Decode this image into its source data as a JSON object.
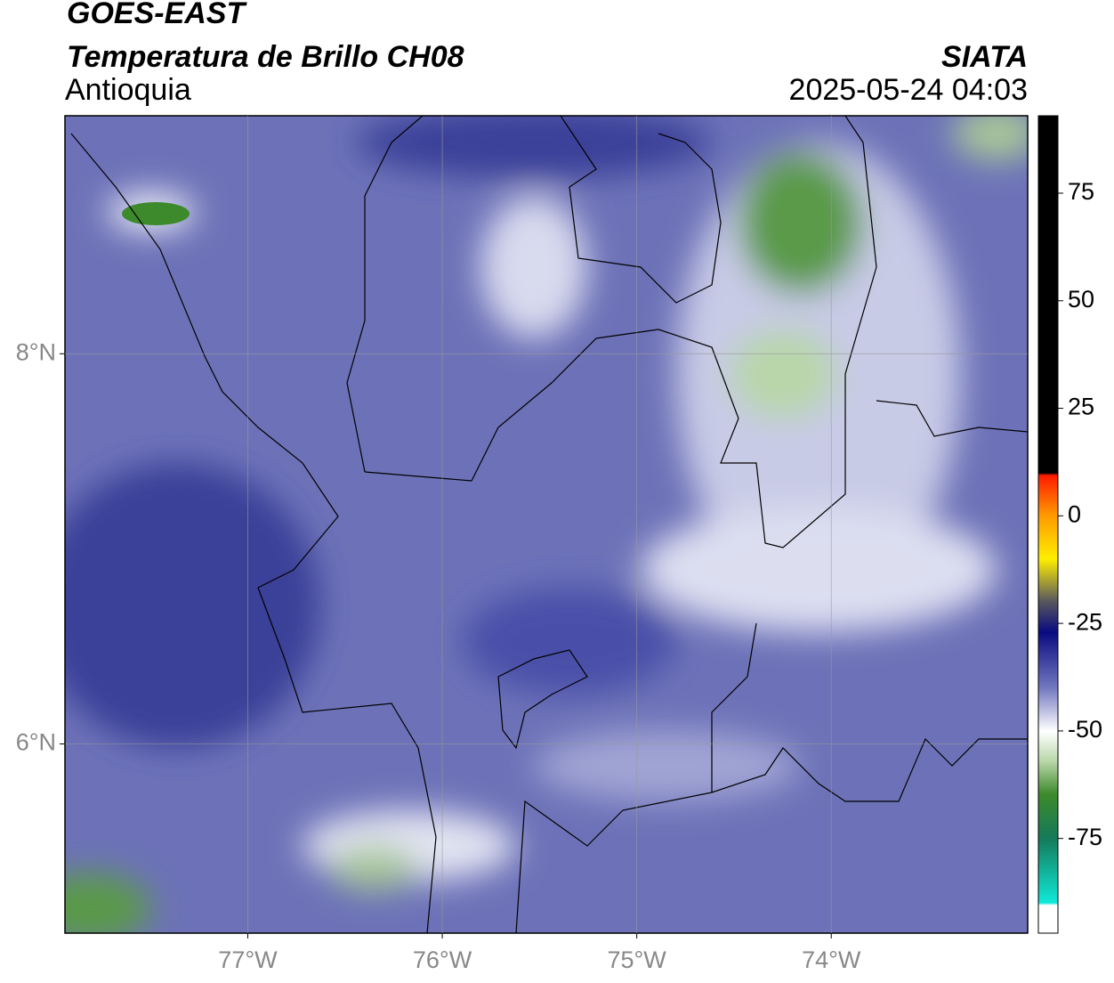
{
  "header": {
    "title": "GOES-EAST",
    "subtitle": "Temperatura de Brillo CH08",
    "region": "Antioquia",
    "source": "SIATA",
    "datetime": "2025-05-24 04:03"
  },
  "map": {
    "lon_range": [
      -77.94,
      -72.99
    ],
    "lat_range": [
      5.03,
      9.22
    ],
    "lon_ticks": [
      {
        "value": -77,
        "label": "77°W"
      },
      {
        "value": -76,
        "label": "76°W"
      },
      {
        "value": -75,
        "label": "75°W"
      },
      {
        "value": -74,
        "label": "74°W"
      }
    ],
    "lat_ticks": [
      {
        "value": 8,
        "label": "8°N"
      },
      {
        "value": 6,
        "label": "6°N"
      }
    ]
  },
  "colorbar": {
    "range": [
      -97,
      93
    ],
    "ticks": [
      75,
      50,
      25,
      0,
      -25,
      -50,
      -75
    ]
  }
}
